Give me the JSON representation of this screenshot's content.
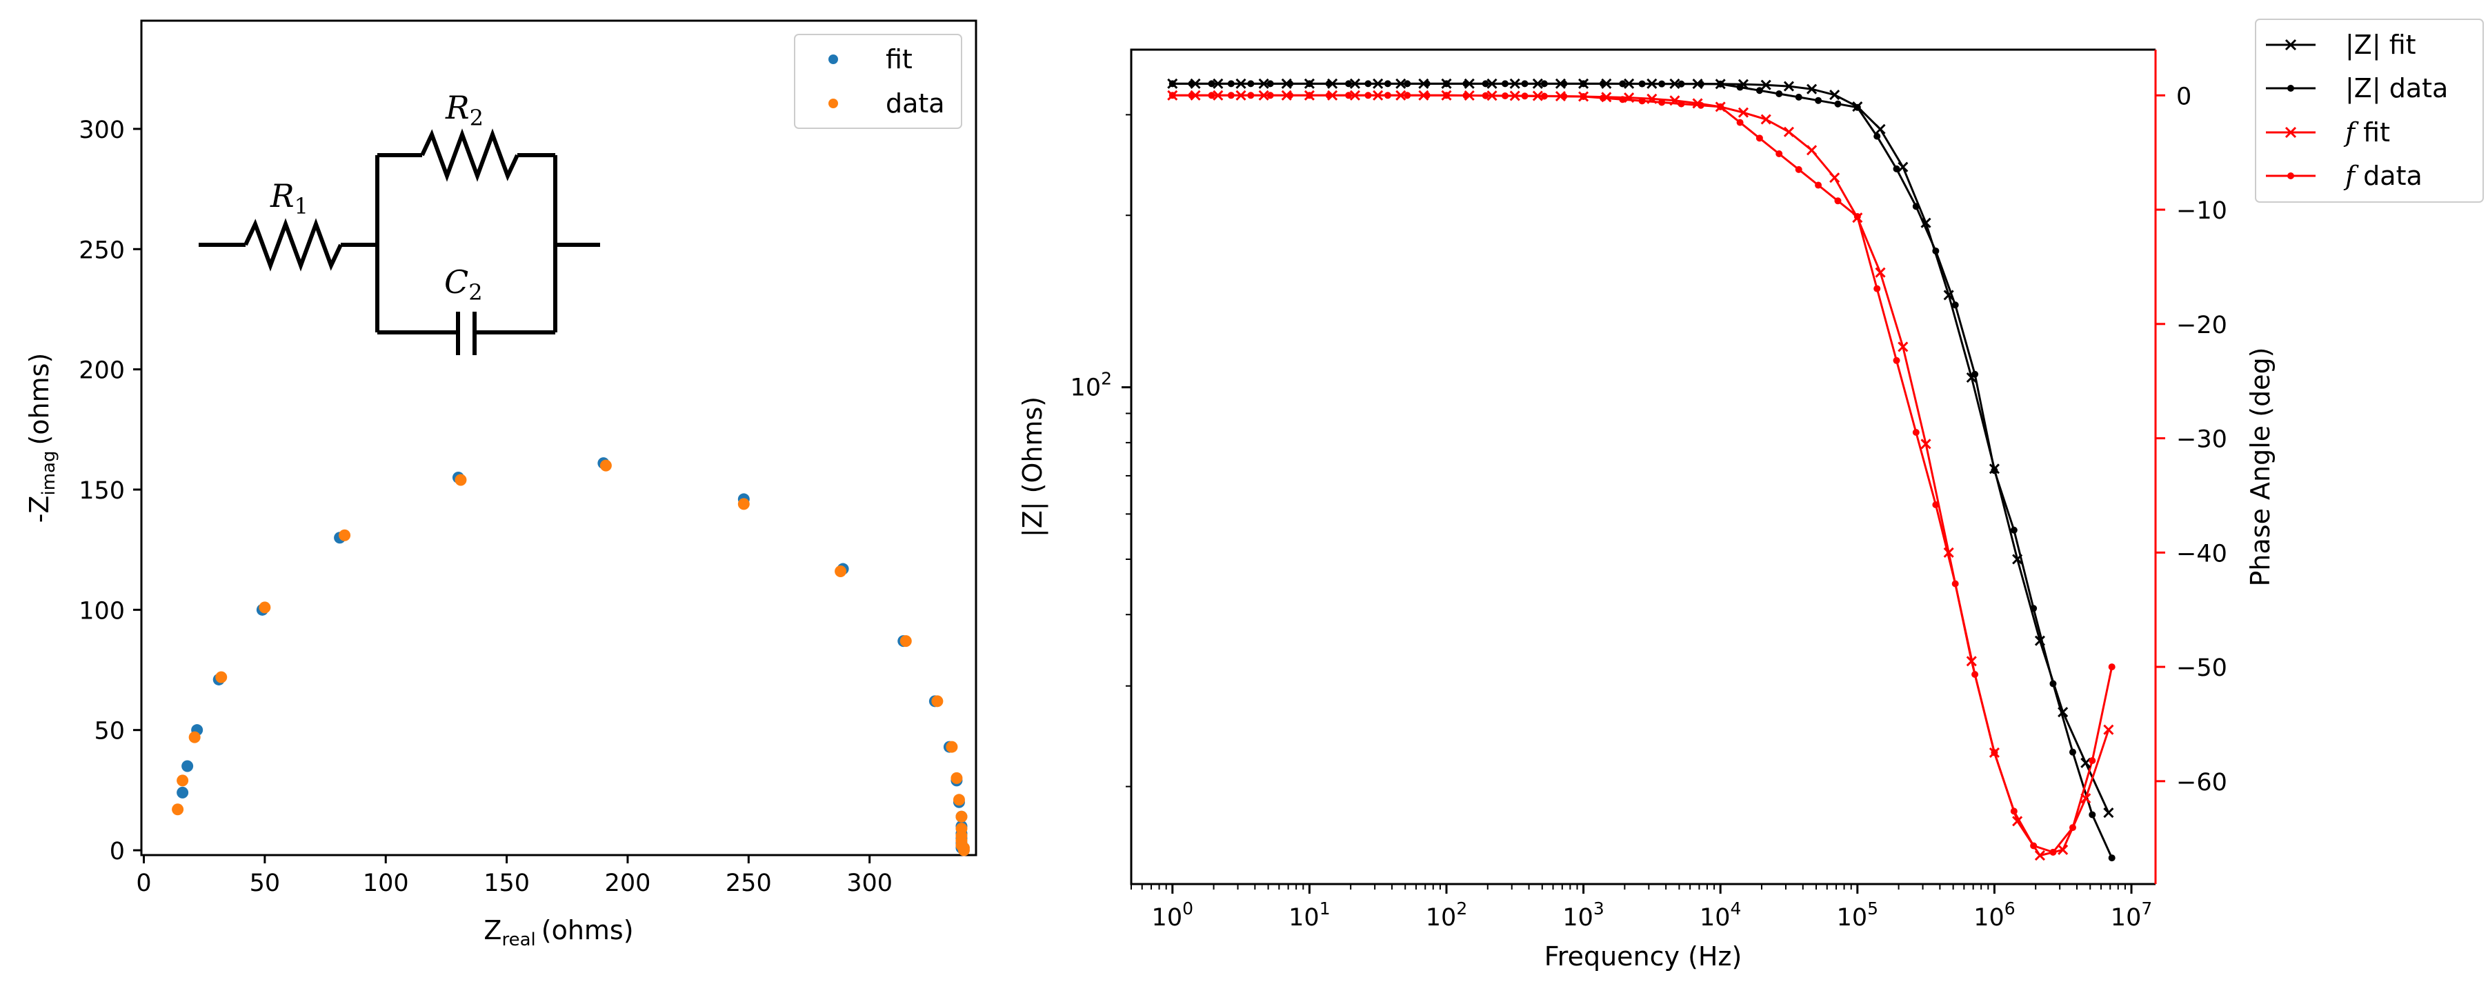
{
  "colors": {
    "fit_blue": "#1f77b4",
    "data_orange": "#ff7f0e",
    "magnitude_black": "#000000",
    "phase_red": "#ff0000"
  },
  "chart_data": [
    {
      "type": "scatter",
      "xlabel_main": "Z",
      "xlabel_sub": "real",
      "xlabel_unit": "(ohms)",
      "ylabel_prefix": "-Z",
      "ylabel_sub": "imag",
      "ylabel_unit": "(ohms)",
      "xlim": [
        -1,
        344
      ],
      "ylim": [
        -2,
        345
      ],
      "xticks": [
        0,
        50,
        100,
        150,
        200,
        250,
        300
      ],
      "yticks": [
        0,
        50,
        100,
        150,
        200,
        250,
        300
      ],
      "legend_position": "top-right",
      "series": [
        {
          "name": "fit",
          "color": "#1f77b4",
          "points": [
            [
              16,
              24
            ],
            [
              18,
              35
            ],
            [
              22,
              50
            ],
            [
              31,
              71
            ],
            [
              49,
              100
            ],
            [
              81,
              130
            ],
            [
              130,
              155
            ],
            [
              190,
              161
            ],
            [
              248,
              146
            ],
            [
              289,
              117
            ],
            [
              314,
              87
            ],
            [
              327,
              62
            ],
            [
              333,
              43
            ],
            [
              336,
              29
            ],
            [
              337,
              20
            ],
            [
              338,
              14
            ],
            [
              338,
              10
            ],
            [
              338,
              7
            ],
            [
              338,
              5
            ],
            [
              338,
              3
            ],
            [
              338,
              2
            ],
            [
              338,
              1
            ]
          ]
        },
        {
          "name": "data",
          "color": "#ff7f0e",
          "points": [
            [
              14,
              17
            ],
            [
              16,
              29
            ],
            [
              21,
              47
            ],
            [
              32,
              72
            ],
            [
              50,
              101
            ],
            [
              83,
              131
            ],
            [
              131,
              154
            ],
            [
              191,
              160
            ],
            [
              248,
              144
            ],
            [
              288,
              116
            ],
            [
              315,
              87
            ],
            [
              328,
              62
            ],
            [
              334,
              43
            ],
            [
              336,
              30
            ],
            [
              337,
              21
            ],
            [
              338,
              14
            ],
            [
              338,
              9
            ],
            [
              338,
              6
            ],
            [
              338,
              4
            ],
            [
              338,
              2
            ],
            [
              339,
              1
            ],
            [
              339,
              0
            ]
          ]
        }
      ],
      "circuit": {
        "r1_symbol": "R",
        "r1_sub": "1",
        "r2_symbol": "R",
        "r2_sub": "2",
        "c2_symbol": "C",
        "c2_sub": "2"
      }
    },
    {
      "type": "line",
      "xlabel": "Frequency (Hz)",
      "ylabel_left": "|Z| (Ohms)",
      "ylabel_right": "Phase Angle (deg)",
      "x_scale": "log",
      "left_y_scale": "log",
      "xlim": [
        0.5,
        15000000
      ],
      "left_ylim": [
        13.5,
        390
      ],
      "right_ylim": [
        -69,
        4
      ],
      "xtick_exponents": [
        0,
        1,
        2,
        3,
        4,
        5,
        6,
        7
      ],
      "xtick_base": "10",
      "left_ytick_label": {
        "base": "10",
        "exponent": "2",
        "value": 100
      },
      "right_yticks": [
        0,
        -10,
        -20,
        -30,
        -40,
        -50,
        -60
      ],
      "legend_position": "outside-top-right",
      "frequencies": [
        1.0,
        1.38,
        1.93,
        2.68,
        3.73,
        5.18,
        7.2,
        10.0,
        13.9,
        19.3,
        26.8,
        37.3,
        51.8,
        72.0,
        100,
        139,
        193,
        268,
        373,
        518,
        720,
        1000,
        1390,
        1930,
        2680,
        3730,
        5180,
        7200,
        10000,
        13900,
        19300,
        26800,
        37300,
        51800,
        72000,
        100000,
        139000,
        193000,
        268000,
        373000,
        518000,
        720000,
        1000000,
        1390000,
        1930000,
        2680000,
        3730000,
        5180000,
        7200000
      ],
      "fit_frequencies": [
        1.0,
        1.47,
        2.15,
        3.16,
        4.64,
        6.81,
        10.0,
        14.7,
        21.5,
        31.6,
        46.4,
        68.1,
        100,
        147,
        215,
        316,
        464,
        681,
        1000,
        1470,
        2150,
        3160,
        4640,
        6810,
        10000,
        14700,
        21500,
        31600,
        46400,
        68100,
        100000,
        147000,
        215000,
        316000,
        464000,
        681000,
        1000000,
        1470000,
        2150000,
        3160000,
        4640000,
        6810000
      ],
      "series": [
        {
          "name": "|Z| fit",
          "axis": "left",
          "color": "#000000",
          "marker": "x",
          "points": [
            [
              1.0,
              340
            ],
            [
              10.0,
              340
            ],
            [
              100,
              340
            ],
            [
              1000,
              340
            ],
            [
              1470,
              340
            ],
            [
              2150,
              340
            ],
            [
              3160,
              340
            ],
            [
              4640,
              339.9
            ],
            [
              6810,
              339.8
            ],
            [
              10000,
              339.6
            ],
            [
              14700,
              339.2
            ],
            [
              21500,
              338.3
            ],
            [
              31600,
              336.5
            ],
            [
              46400,
              332.7
            ],
            [
              68100,
              325
            ],
            [
              100000,
              310
            ],
            [
              147000,
              283
            ],
            [
              215000,
              243
            ],
            [
              316000,
              194
            ],
            [
              464000,
              145
            ],
            [
              681000,
              104
            ],
            [
              1000000,
              72
            ],
            [
              1470000,
              50
            ],
            [
              2150000,
              36
            ],
            [
              3160000,
              27
            ],
            [
              4640000,
              22
            ],
            [
              6810000,
              18
            ]
          ]
        },
        {
          "name": "|Z| data",
          "axis": "left",
          "color": "#000000",
          "marker": "o",
          "points": [
            [
              1.0,
              340
            ],
            [
              10.0,
              340
            ],
            [
              100,
              340
            ],
            [
              1000,
              340
            ],
            [
              10000,
              339.5
            ],
            [
              100000,
              309
            ],
            [
              1000000,
              71.5
            ],
            [
              2150000,
              36
            ],
            [
              3160000,
              26
            ],
            [
              4640000,
              19
            ],
            [
              6810000,
              15
            ]
          ]
        },
        {
          "name": "f fit",
          "axis": "right",
          "color": "#ff0000",
          "marker": "x",
          "points": [
            [
              1.0,
              0
            ],
            [
              10.0,
              0
            ],
            [
              100,
              0
            ],
            [
              500,
              -0.05
            ],
            [
              1000,
              -0.1
            ],
            [
              2150,
              -0.2
            ],
            [
              3160,
              -0.3
            ],
            [
              4640,
              -0.45
            ],
            [
              6810,
              -0.7
            ],
            [
              10000,
              -1.0
            ],
            [
              14700,
              -1.5
            ],
            [
              21500,
              -2.1
            ],
            [
              31600,
              -3.2
            ],
            [
              46400,
              -4.8
            ],
            [
              68100,
              -7.2
            ],
            [
              100000,
              -10.7
            ],
            [
              147000,
              -15.5
            ],
            [
              215000,
              -22
            ],
            [
              316000,
              -30.5
            ],
            [
              464000,
              -40
            ],
            [
              681000,
              -49.5
            ],
            [
              1000000,
              -57.5
            ],
            [
              1470000,
              -63.5
            ],
            [
              2150000,
              -66.5
            ],
            [
              3160000,
              -66
            ],
            [
              4640000,
              -61.5
            ],
            [
              6810000,
              -55.5
            ]
          ]
        },
        {
          "name": "f data",
          "axis": "right",
          "color": "#ff0000",
          "marker": "o",
          "points": [
            [
              1.0,
              0
            ],
            [
              10.0,
              0
            ],
            [
              100,
              0
            ],
            [
              1000,
              -0.1
            ],
            [
              10000,
              -1.0
            ],
            [
              100000,
              -10.6
            ],
            [
              464000,
              -40
            ],
            [
              681000,
              -49.5
            ],
            [
              1000000,
              -57.5
            ],
            [
              1470000,
              -63.5
            ],
            [
              2150000,
              -66.5
            ],
            [
              3160000,
              -66
            ],
            [
              4640000,
              -61.5
            ],
            [
              6810000,
              -50
            ]
          ]
        }
      ],
      "legend": [
        {
          "main": "|Z| fit",
          "italic": false
        },
        {
          "main": "|Z| data",
          "italic": false
        },
        {
          "italic_part": "f",
          "rest": " fit",
          "italic": true
        },
        {
          "italic_part": "f",
          "rest": " data",
          "italic": true
        }
      ]
    }
  ]
}
